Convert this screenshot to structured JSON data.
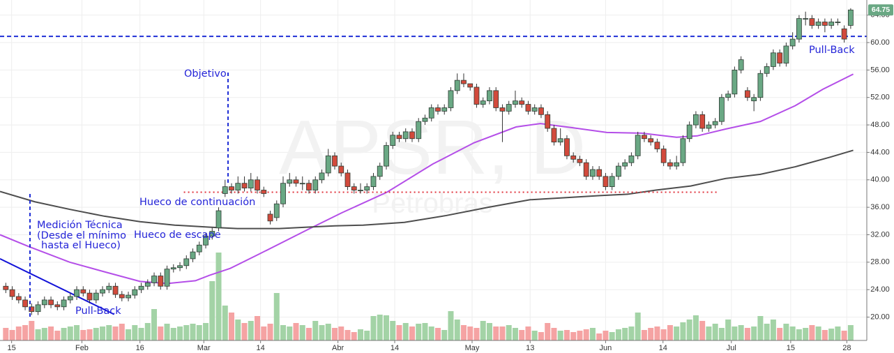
{
  "chart_data": {
    "type": "candlestick",
    "watermark": {
      "symbol": "APSR, D",
      "name": "Petrobras"
    },
    "xlim": [
      -0.9,
      133.5
    ],
    "ylim": [
      16.6,
      66.2
    ],
    "grid": true,
    "xticks": [
      {
        "value": 0.9,
        "label": "15"
      },
      {
        "value": 11.8,
        "label": "Feb"
      },
      {
        "value": 20.8,
        "label": "16"
      },
      {
        "value": 30.7,
        "label": "Mar"
      },
      {
        "value": 39.5,
        "label": "14"
      },
      {
        "value": 51.5,
        "label": "Abr"
      },
      {
        "value": 60.3,
        "label": "14"
      },
      {
        "value": 72.3,
        "label": "May"
      },
      {
        "value": 81.3,
        "label": "13"
      },
      {
        "value": 93.0,
        "label": "Jun"
      },
      {
        "value": 101.9,
        "label": "14"
      },
      {
        "value": 112.5,
        "label": "Jul"
      },
      {
        "value": 121.7,
        "label": "15"
      },
      {
        "value": 130.4,
        "label": "28"
      }
    ],
    "yticks": [
      {
        "value": 20,
        "label": "20.00"
      },
      {
        "value": 24,
        "label": "24.00"
      },
      {
        "value": 28,
        "label": "28.00"
      },
      {
        "value": 32,
        "label": "32.00"
      },
      {
        "value": 36,
        "label": "36.00"
      },
      {
        "value": 40,
        "label": "40.00"
      },
      {
        "value": 44,
        "label": "44.00"
      },
      {
        "value": 48,
        "label": "48.00"
      },
      {
        "value": 52,
        "label": "52.00"
      },
      {
        "value": 56,
        "label": "56.00"
      },
      {
        "value": 60,
        "label": "60.00"
      },
      {
        "value": 64,
        "label": "64.00"
      }
    ],
    "up_color": "#6aa884",
    "down_color": "#d24a3c",
    "volume_up_color": "#a3d3a6",
    "volume_down_color": "#f5a3a3",
    "ohlc": [
      [
        24.5,
        25.0,
        23.5,
        24.0
      ],
      [
        24.0,
        24.5,
        22.5,
        23.0
      ],
      [
        23.0,
        23.5,
        22.0,
        22.5
      ],
      [
        22.5,
        23.0,
        21.0,
        21.5
      ],
      [
        21.5,
        22.0,
        20.3,
        20.8
      ],
      [
        20.8,
        22.3,
        20.3,
        21.8
      ],
      [
        21.8,
        23.0,
        21.3,
        22.5
      ],
      [
        22.5,
        23.0,
        21.3,
        21.8
      ],
      [
        21.8,
        22.3,
        21.0,
        21.5
      ],
      [
        21.5,
        23.0,
        21.0,
        22.5
      ],
      [
        22.5,
        23.5,
        22.0,
        23.0
      ],
      [
        23.0,
        24.5,
        22.5,
        24.0
      ],
      [
        24.0,
        24.5,
        23.0,
        23.5
      ],
      [
        23.5,
        24.0,
        22.0,
        22.5
      ],
      [
        22.5,
        24.0,
        22.0,
        23.5
      ],
      [
        23.5,
        24.5,
        23.0,
        24.0
      ],
      [
        24.0,
        25.0,
        23.5,
        24.5
      ],
      [
        24.5,
        25.0,
        22.8,
        23.3
      ],
      [
        23.3,
        23.8,
        22.3,
        22.8
      ],
      [
        22.8,
        23.7,
        22.3,
        23.2
      ],
      [
        23.2,
        24.5,
        22.7,
        24.0
      ],
      [
        24.0,
        25.0,
        23.5,
        24.5
      ],
      [
        24.5,
        25.5,
        24.0,
        25.0
      ],
      [
        25.0,
        26.5,
        24.5,
        26.0
      ],
      [
        26.0,
        26.5,
        24.0,
        24.5
      ],
      [
        24.5,
        27.5,
        24.0,
        27.0
      ],
      [
        27.0,
        27.7,
        26.5,
        27.2
      ],
      [
        27.2,
        28.0,
        26.7,
        27.5
      ],
      [
        27.5,
        29.0,
        27.0,
        28.5
      ],
      [
        28.5,
        30.0,
        28.0,
        29.5
      ],
      [
        29.5,
        31.0,
        29.0,
        30.5
      ],
      [
        30.5,
        32.3,
        30.0,
        31.8
      ],
      [
        31.8,
        33.0,
        31.3,
        32.5
      ],
      [
        33.0,
        36.0,
        32.5,
        35.5
      ],
      [
        38.0,
        40.0,
        37.5,
        39.0
      ],
      [
        39.0,
        39.5,
        38.0,
        38.5
      ],
      [
        38.5,
        40.5,
        38.0,
        39.5
      ],
      [
        39.5,
        40.5,
        38.3,
        38.8
      ],
      [
        38.8,
        41.0,
        38.3,
        40.0
      ],
      [
        40.0,
        40.5,
        38.0,
        38.5
      ],
      [
        38.5,
        39.0,
        37.5,
        38.0
      ],
      [
        35.0,
        35.5,
        33.5,
        34.0
      ],
      [
        34.5,
        37.0,
        34.0,
        36.5
      ],
      [
        36.5,
        40.5,
        36.0,
        39.5
      ],
      [
        39.5,
        41.0,
        39.0,
        40.0
      ],
      [
        40.0,
        40.5,
        39.0,
        39.5
      ],
      [
        39.5,
        40.5,
        38.5,
        39.5
      ],
      [
        39.5,
        40.0,
        38.0,
        38.5
      ],
      [
        38.5,
        40.5,
        38.0,
        40.0
      ],
      [
        40.0,
        41.5,
        39.5,
        41.0
      ],
      [
        41.0,
        44.5,
        40.5,
        43.5
      ],
      [
        43.5,
        44.0,
        41.5,
        42.0
      ],
      [
        42.0,
        42.5,
        40.5,
        41.0
      ],
      [
        41.0,
        41.5,
        38.5,
        39.0
      ],
      [
        39.0,
        39.5,
        38.0,
        38.5
      ],
      [
        38.5,
        39.5,
        38.0,
        38.5
      ],
      [
        38.5,
        39.5,
        38.0,
        39.0
      ],
      [
        39.0,
        41.0,
        38.5,
        40.5
      ],
      [
        40.5,
        42.5,
        40.0,
        42.0
      ],
      [
        42.0,
        45.5,
        41.5,
        45.0
      ],
      [
        45.0,
        47.0,
        44.5,
        46.5
      ],
      [
        46.5,
        47.0,
        45.5,
        46.0
      ],
      [
        46.0,
        47.5,
        45.5,
        47.0
      ],
      [
        47.0,
        47.5,
        45.5,
        46.0
      ],
      [
        46.0,
        49.0,
        45.5,
        48.5
      ],
      [
        48.5,
        49.5,
        48.0,
        49.0
      ],
      [
        49.0,
        51.0,
        48.5,
        50.5
      ],
      [
        50.5,
        51.0,
        49.5,
        50.0
      ],
      [
        50.0,
        51.0,
        49.5,
        50.5
      ],
      [
        50.5,
        53.5,
        50.0,
        53.0
      ],
      [
        53.0,
        55.5,
        52.5,
        54.5
      ],
      [
        54.5,
        55.5,
        53.5,
        54.0
      ],
      [
        54.0,
        54.0,
        53.0,
        53.5
      ],
      [
        53.5,
        54.0,
        50.5,
        51.0
      ],
      [
        51.0,
        52.0,
        50.5,
        51.5
      ],
      [
        51.5,
        53.5,
        51.0,
        53.0
      ],
      [
        53.0,
        53.5,
        50.0,
        50.5
      ],
      [
        50.5,
        51.0,
        45.5,
        50.0
      ],
      [
        50.0,
        51.5,
        49.5,
        51.0
      ],
      [
        51.0,
        53.0,
        50.5,
        51.5
      ],
      [
        51.5,
        52.0,
        50.5,
        51.0
      ],
      [
        51.0,
        51.5,
        49.5,
        50.0
      ],
      [
        50.0,
        51.0,
        49.5,
        50.5
      ],
      [
        50.5,
        51.0,
        49.0,
        49.5
      ],
      [
        49.5,
        50.0,
        47.0,
        47.5
      ],
      [
        47.5,
        48.0,
        45.0,
        45.5
      ],
      [
        45.5,
        47.5,
        45.0,
        46.0
      ],
      [
        46.0,
        46.5,
        43.0,
        43.5
      ],
      [
        43.5,
        44.0,
        42.5,
        43.0
      ],
      [
        43.0,
        43.5,
        42.0,
        42.5
      ],
      [
        42.5,
        43.0,
        40.0,
        40.5
      ],
      [
        40.5,
        42.0,
        40.0,
        41.5
      ],
      [
        41.5,
        42.0,
        40.0,
        40.5
      ],
      [
        40.5,
        41.0,
        38.5,
        39.0
      ],
      [
        39.0,
        41.0,
        38.5,
        40.5
      ],
      [
        40.5,
        42.5,
        40.0,
        42.0
      ],
      [
        42.0,
        43.0,
        41.5,
        42.5
      ],
      [
        42.5,
        44.0,
        42.0,
        43.5
      ],
      [
        43.5,
        47.0,
        43.0,
        46.5
      ],
      [
        46.5,
        47.0,
        45.5,
        46.0
      ],
      [
        46.0,
        46.5,
        45.0,
        45.5
      ],
      [
        45.5,
        46.0,
        44.0,
        44.5
      ],
      [
        44.5,
        45.0,
        42.0,
        42.5
      ],
      [
        42.5,
        43.0,
        41.5,
        42.0
      ],
      [
        42.0,
        43.5,
        41.5,
        42.5
      ],
      [
        42.5,
        46.5,
        42.0,
        46.0
      ],
      [
        46.0,
        48.5,
        45.5,
        48.0
      ],
      [
        48.0,
        50.0,
        47.5,
        49.5
      ],
      [
        49.5,
        50.0,
        47.0,
        47.5
      ],
      [
        47.5,
        48.5,
        47.0,
        48.0
      ],
      [
        48.0,
        49.0,
        47.5,
        48.5
      ],
      [
        48.5,
        52.5,
        48.0,
        52.0
      ],
      [
        52.0,
        53.0,
        51.5,
        52.5
      ],
      [
        52.5,
        56.5,
        52.0,
        56.0
      ],
      [
        56.0,
        58.0,
        55.5,
        57.5
      ],
      [
        53.0,
        53.5,
        51.5,
        52.0
      ],
      [
        51.5,
        52.5,
        50.0,
        52.0
      ],
      [
        52.0,
        56.0,
        51.5,
        55.5
      ],
      [
        55.5,
        57.0,
        55.0,
        56.5
      ],
      [
        56.5,
        59.0,
        56.0,
        58.5
      ],
      [
        58.5,
        59.0,
        56.5,
        57.0
      ],
      [
        57.0,
        60.0,
        56.5,
        59.5
      ],
      [
        59.5,
        61.5,
        59.0,
        60.5
      ],
      [
        60.5,
        64.0,
        60.0,
        63.5
      ],
      [
        63.5,
        64.5,
        62.5,
        63.5
      ],
      [
        63.5,
        64.0,
        62.0,
        62.5
      ],
      [
        62.5,
        63.5,
        62.0,
        63.0
      ],
      [
        63.0,
        63.5,
        61.5,
        62.5
      ],
      [
        62.5,
        63.5,
        62.0,
        63.0
      ],
      [
        63.0,
        63.5,
        62.5,
        63.0
      ],
      [
        62.0,
        62.5,
        60.0,
        60.5
      ],
      [
        62.5,
        65.0,
        62.0,
        64.75
      ]
    ],
    "volume": [
      18,
      15,
      20,
      22,
      28,
      16,
      18,
      20,
      14,
      18,
      20,
      22,
      15,
      16,
      18,
      20,
      22,
      20,
      24,
      16,
      22,
      18,
      25,
      45,
      20,
      24,
      18,
      20,
      22,
      24,
      22,
      25,
      85,
      126,
      50,
      40,
      30,
      25,
      28,
      35,
      20,
      24,
      68,
      22,
      20,
      25,
      22,
      18,
      28,
      22,
      24,
      18,
      20,
      15,
      12,
      16,
      14,
      35,
      37,
      36,
      28,
      22,
      25,
      20,
      24,
      25,
      20,
      18,
      15,
      42,
      30,
      22,
      20,
      18,
      28,
      25,
      20,
      20,
      22,
      18,
      15,
      20,
      14,
      12,
      25,
      18,
      14,
      15,
      12,
      14,
      16,
      18,
      10,
      14,
      12,
      16,
      18,
      20,
      40,
      15,
      18,
      20,
      16,
      22,
      20,
      26,
      30,
      36,
      28,
      20,
      24,
      18,
      30,
      20,
      22,
      18,
      20,
      35,
      24,
      30,
      18,
      24,
      20,
      16,
      18,
      22,
      20,
      15,
      17,
      20,
      14,
      22
    ],
    "moving_averages": [
      {
        "color": "#b44ee8",
        "x": [
          -0.9,
          3.5,
          9.9,
          15.3,
          20.8,
          25.1,
          29.4,
          31.6,
          34.8,
          39.1,
          46.7,
          52.1,
          59.1,
          66.2,
          72.6,
          79.1,
          82.9,
          87.8,
          93.2,
          98.6,
          104,
          107.2,
          111.6,
          117,
          122.4,
          126.7,
          131.4
        ],
        "values": [
          32.0,
          30.3,
          28.0,
          26.6,
          25.2,
          24.9,
          25.3,
          26.1,
          27.1,
          29.1,
          32.7,
          35.2,
          38.2,
          42.3,
          45.4,
          47.7,
          48.2,
          47.6,
          46.9,
          46.8,
          46.2,
          46.4,
          47.4,
          48.5,
          50.8,
          53.2,
          55.4
        ]
      },
      {
        "color": "#4d4d4d",
        "x": [
          -0.9,
          4.5,
          9.9,
          15.3,
          20.8,
          26.2,
          31.6,
          35.9,
          42.4,
          46.7,
          51,
          55.4,
          61.8,
          68.3,
          74.8,
          81.3,
          86.7,
          92.1,
          96.4,
          100.8,
          106.2,
          111.6,
          117,
          122.4,
          127.8,
          131.4
        ],
        "values": [
          38.3,
          36.8,
          35.7,
          34.7,
          33.9,
          33.4,
          33.1,
          32.9,
          32.9,
          33.1,
          33.3,
          33.4,
          33.8,
          34.8,
          36.0,
          37.1,
          37.4,
          37.7,
          37.9,
          38.5,
          39.1,
          40.2,
          40.8,
          41.9,
          43.3,
          44.3
        ]
      }
    ],
    "levels": [
      {
        "color": "#1f2ed6",
        "value": 60.9,
        "x": [
          -0.9,
          133.5
        ]
      },
      {
        "color": "#e0303a",
        "value": 38.2,
        "x": [
          27.6,
          110.3
        ]
      }
    ],
    "trendline": {
      "color": "#1212d8",
      "x": [
        -0.9,
        16.8
      ],
      "values": [
        28.5,
        20.4
      ]
    },
    "annotations": [
      "Objetivo",
      "Hueco de continuación",
      "Medición Técnica",
      "(Desde el mínimo",
      "hasta el Hueco)",
      "Hueco de escape",
      "Pull-Back",
      "Pull-Back"
    ]
  }
}
